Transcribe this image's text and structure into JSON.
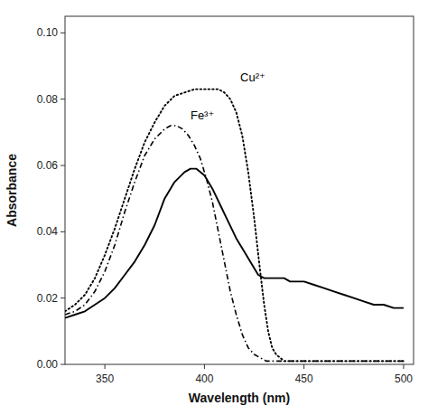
{
  "chart_data": {
    "type": "line",
    "title": "",
    "xlabel": "Wavelength (nm)",
    "ylabel": "Absorbance",
    "xlim": [
      330,
      505
    ],
    "ylim": [
      0.0,
      0.105
    ],
    "xticks": [
      350,
      400,
      450,
      500
    ],
    "yticks": [
      {
        "value": 0.0,
        "label": "0.00"
      },
      {
        "value": 0.02,
        "label": "0.02"
      },
      {
        "value": 0.04,
        "label": "0.04"
      },
      {
        "value": 0.06,
        "label": "0.06"
      },
      {
        "value": 0.08,
        "label": "0.08"
      },
      {
        "value": 0.1,
        "label": "0.10"
      }
    ],
    "grid": false,
    "series": [
      {
        "color": "#000000",
        "line_style": "solid",
        "x": [
          330,
          335,
          340,
          345,
          350,
          355,
          360,
          365,
          370,
          375,
          380,
          385,
          390,
          393,
          396,
          400,
          404,
          408,
          412,
          416,
          420,
          424,
          427,
          430,
          432,
          434,
          436,
          438,
          440,
          443,
          446,
          450,
          455,
          460,
          465,
          470,
          475,
          480,
          485,
          490,
          495,
          500
        ],
        "values": [
          0.014,
          0.015,
          0.016,
          0.018,
          0.02,
          0.023,
          0.027,
          0.031,
          0.036,
          0.042,
          0.05,
          0.055,
          0.058,
          0.059,
          0.059,
          0.057,
          0.053,
          0.048,
          0.043,
          0.038,
          0.034,
          0.03,
          0.027,
          0.026,
          0.026,
          0.026,
          0.026,
          0.026,
          0.026,
          0.025,
          0.025,
          0.025,
          0.024,
          0.023,
          0.022,
          0.021,
          0.02,
          0.019,
          0.018,
          0.018,
          0.017,
          0.017
        ]
      },
      {
        "color": "#000000",
        "line_style": "dashdot",
        "x": [
          330,
          335,
          340,
          345,
          350,
          355,
          360,
          365,
          370,
          375,
          380,
          383,
          386,
          389,
          392,
          395,
          398,
          401,
          404,
          407,
          410,
          413,
          416,
          419,
          422,
          425,
          428,
          431,
          434,
          437,
          440,
          445,
          450,
          455,
          460,
          465,
          470,
          475,
          480,
          485,
          490,
          495,
          500
        ],
        "values": [
          0.015,
          0.016,
          0.018,
          0.022,
          0.028,
          0.036,
          0.046,
          0.055,
          0.063,
          0.068,
          0.071,
          0.072,
          0.072,
          0.071,
          0.069,
          0.066,
          0.062,
          0.056,
          0.049,
          0.04,
          0.031,
          0.022,
          0.015,
          0.009,
          0.005,
          0.003,
          0.002,
          0.001,
          0.001,
          0.001,
          0.001,
          0.001,
          0.001,
          0.001,
          0.001,
          0.001,
          0.001,
          0.001,
          0.001,
          0.001,
          0.001,
          0.001,
          0.001
        ]
      },
      {
        "color": "#000000",
        "line_style": "dotted",
        "x": [
          330,
          335,
          340,
          345,
          350,
          355,
          360,
          365,
          370,
          375,
          380,
          385,
          390,
          395,
          400,
          404,
          407,
          410,
          413,
          416,
          419,
          422,
          425,
          428,
          430,
          432,
          434,
          436,
          438,
          440,
          443,
          446,
          450,
          455,
          460,
          465,
          470,
          475,
          480,
          485,
          490,
          495,
          500
        ],
        "values": [
          0.016,
          0.018,
          0.021,
          0.026,
          0.033,
          0.041,
          0.05,
          0.059,
          0.067,
          0.073,
          0.078,
          0.081,
          0.082,
          0.083,
          0.083,
          0.083,
          0.083,
          0.082,
          0.08,
          0.076,
          0.069,
          0.058,
          0.044,
          0.028,
          0.018,
          0.01,
          0.005,
          0.003,
          0.002,
          0.001,
          0.001,
          0.001,
          0.001,
          0.001,
          0.001,
          0.001,
          0.001,
          0.001,
          0.001,
          0.001,
          0.001,
          0.001,
          0.001
        ]
      }
    ],
    "annotations": [
      {
        "text": "Cu²⁺",
        "x": 418,
        "y": 0.0845
      },
      {
        "text": "Fe³⁺",
        "x": 393,
        "y": 0.073
      }
    ]
  }
}
